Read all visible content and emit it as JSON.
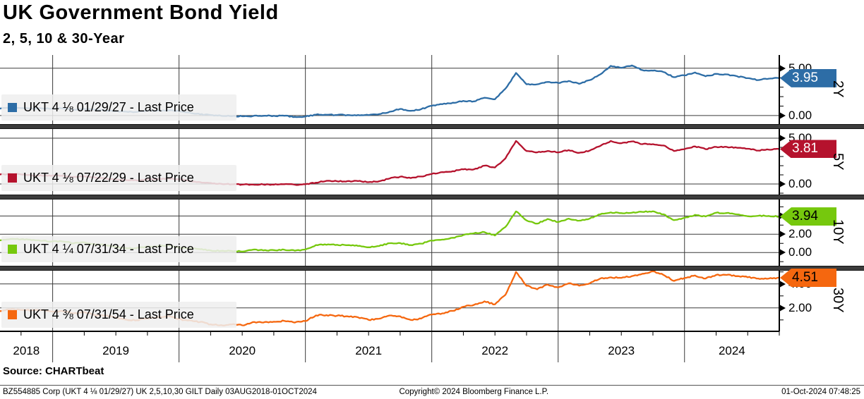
{
  "header": {
    "title": "UK Government Bond Yield",
    "subtitle": "2, 5, 10 & 30-Year"
  },
  "source_label": "Source: CHARTbeat",
  "footer": {
    "left": "BZ554885 Corp (UKT 4 ⅛  01/29/27) UK 2,5,10,30 GILT  Daily 03AUG2018-01OCT2024",
    "center": "Copyright© 2024 Bloomberg Finance L.P.",
    "right": "01-Oct-2024 07:48:25"
  },
  "chart_data": {
    "type": "line",
    "frequency": "Daily",
    "date_range": "03AUG2018-01OCT2024",
    "x_year_labels": [
      "2018",
      "2019",
      "2020",
      "2021",
      "2022",
      "2023",
      "2024"
    ],
    "x_note": "values are monthly samples from Aug-2018 to Oct-2024 (75 points per series), yields in percent",
    "grid": true,
    "legend_position": "inside-lower-left-per-panel",
    "panels": [
      {
        "tenor": "2Y",
        "legend": "UKT 4 ⅛  01/29/27 - Last Price",
        "color": "#2d6da6",
        "badge_text_color": "#ffffff",
        "last_price": "3.95",
        "y_range": [
          -0.9,
          6.4
        ],
        "ticks": [
          {
            "value": 5,
            "label": "5.00"
          },
          {
            "value": 0,
            "label": "0.00"
          }
        ],
        "values": [
          0.73,
          0.82,
          0.78,
          0.75,
          0.75,
          0.74,
          0.75,
          0.63,
          0.72,
          0.61,
          0.55,
          0.45,
          0.41,
          0.38,
          0.52,
          0.54,
          0.54,
          0.47,
          0.33,
          0.12,
          0.06,
          -0.03,
          -0.07,
          -0.08,
          -0.06,
          -0.03,
          -0.03,
          -0.02,
          -0.14,
          -0.11,
          0.1,
          0.08,
          0.06,
          0.06,
          0.06,
          0.04,
          0.15,
          0.4,
          0.7,
          0.5,
          0.68,
          1.04,
          1.2,
          1.36,
          1.55,
          1.5,
          1.88,
          1.72,
          2.85,
          4.5,
          3.3,
          3.3,
          3.55,
          3.45,
          3.65,
          3.35,
          3.75,
          4.35,
          5.25,
          5.05,
          5.3,
          4.8,
          4.75,
          4.6,
          4.05,
          4.25,
          4.55,
          4.15,
          4.4,
          4.35,
          4.15,
          3.95,
          3.75,
          3.9,
          3.95
        ]
      },
      {
        "tenor": "5Y",
        "legend": "UKT 4 ⅛  07/22/29 - Last Price",
        "color": "#b5122d",
        "badge_text_color": "#ffffff",
        "last_price": "3.81",
        "y_range": [
          -1.15,
          6.0
        ],
        "ticks": [
          {
            "value": 5,
            "label": "5.00"
          },
          {
            "value": 0,
            "label": "0.00"
          }
        ],
        "values": [
          1.03,
          1.12,
          1.05,
          0.95,
          0.9,
          0.92,
          0.9,
          0.78,
          0.85,
          0.72,
          0.62,
          0.5,
          0.42,
          0.38,
          0.52,
          0.56,
          0.6,
          0.52,
          0.35,
          0.2,
          0.12,
          0.02,
          -0.03,
          -0.06,
          -0.05,
          -0.05,
          -0.07,
          -0.02,
          -0.07,
          -0.03,
          0.15,
          0.35,
          0.3,
          0.32,
          0.32,
          0.2,
          0.3,
          0.6,
          0.8,
          0.65,
          0.82,
          1.1,
          1.3,
          1.4,
          1.6,
          1.6,
          2.0,
          1.8,
          2.8,
          4.7,
          3.6,
          3.45,
          3.6,
          3.45,
          3.7,
          3.4,
          3.65,
          4.15,
          4.7,
          4.45,
          4.65,
          4.35,
          4.35,
          4.2,
          3.6,
          3.8,
          4.1,
          3.8,
          4.05,
          4.05,
          3.95,
          3.85,
          3.65,
          3.75,
          3.81
        ]
      },
      {
        "tenor": "10Y",
        "legend": "UKT 4 ¼  07/31/34 - Last Price",
        "color": "#76c80d",
        "badge_text_color": "#000000",
        "last_price": "3.94",
        "y_range": [
          -1.45,
          5.8
        ],
        "ticks": [
          {
            "value": 4,
            "label": "4.00"
          },
          {
            "value": 2,
            "label": "2.00"
          },
          {
            "value": 0,
            "label": "0.00"
          }
        ],
        "values": [
          1.33,
          1.48,
          1.44,
          1.36,
          1.28,
          1.22,
          1.2,
          1.0,
          1.12,
          0.89,
          0.83,
          0.61,
          0.48,
          0.49,
          0.63,
          0.7,
          0.82,
          0.52,
          0.44,
          0.36,
          0.23,
          0.18,
          0.17,
          0.1,
          0.31,
          0.23,
          0.26,
          0.3,
          0.2,
          0.33,
          0.82,
          0.85,
          0.84,
          0.8,
          0.72,
          0.57,
          0.71,
          1.02,
          1.03,
          0.81,
          0.97,
          1.3,
          1.41,
          1.61,
          1.91,
          2.1,
          2.23,
          1.86,
          2.8,
          4.5,
          3.52,
          3.16,
          3.67,
          3.33,
          3.71,
          3.49,
          3.72,
          4.18,
          4.39,
          4.31,
          4.36,
          4.44,
          4.51,
          4.18,
          3.54,
          3.8,
          4.12,
          3.94,
          4.35,
          4.32,
          4.17,
          3.97,
          4.02,
          4.0,
          3.94
        ]
      },
      {
        "tenor": "30Y",
        "legend": "UKT 4 ⅜  07/31/54 - Last Price",
        "color": "#f5670f",
        "badge_text_color": "#000000",
        "last_price": "4.51",
        "y_range": [
          0.05,
          5.1
        ],
        "ticks": [
          {
            "value": 4,
            "label": "4.00"
          },
          {
            "value": 2,
            "label": "2.00"
          }
        ],
        "values": [
          1.73,
          1.87,
          1.83,
          1.81,
          1.82,
          1.7,
          1.72,
          1.55,
          1.65,
          1.42,
          1.35,
          1.2,
          1.02,
          0.98,
          1.12,
          1.22,
          1.33,
          1.05,
          0.98,
          0.83,
          0.63,
          0.57,
          0.63,
          0.55,
          0.82,
          0.78,
          0.85,
          0.92,
          0.78,
          0.9,
          1.38,
          1.4,
          1.35,
          1.3,
          1.22,
          1.0,
          1.1,
          1.37,
          1.3,
          1.0,
          1.12,
          1.45,
          1.55,
          1.75,
          2.1,
          2.25,
          2.55,
          2.3,
          3.1,
          5.0,
          3.85,
          3.55,
          3.95,
          3.7,
          4.05,
          3.85,
          4.05,
          4.45,
          4.55,
          4.5,
          4.65,
          4.85,
          5.05,
          4.75,
          4.25,
          4.5,
          4.7,
          4.45,
          4.75,
          4.75,
          4.65,
          4.55,
          4.45,
          4.45,
          4.51
        ]
      }
    ]
  }
}
